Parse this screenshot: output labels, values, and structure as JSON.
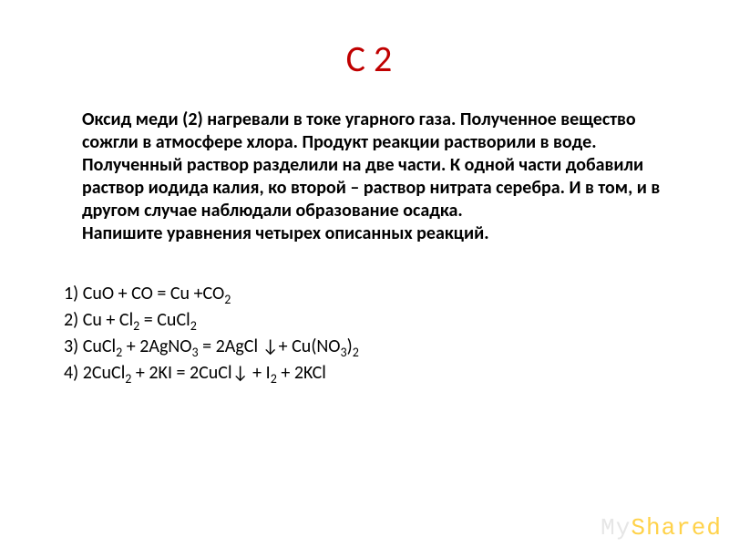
{
  "title": "С 2",
  "paragraph": "Оксид меди (2) нагревали в токе угарного газа. Полученное вещество сожгли в атмосфере хлора. Продукт реакции растворили в воде. Полученный раствор разделили на две части. К одной части добавили раствор иодида калия, ко второй – раствор нитрата серебра. И в том, и в другом случае наблюдали образование осадка.",
  "paragraph_tail": "Напишите уравнения четырех описанных реакций.",
  "equations": {
    "e1_prefix": "1) CuO + CO = Cu +CO",
    "e1_sub": "2",
    "e2_a": "2) Cu + Cl",
    "e2_s1": "2",
    "e2_b": " = CuCl",
    "e2_s2": "2",
    "e3_a": "3) CuCl",
    "e3_s1": "2",
    "e3_b": " + 2AgNO",
    "e3_s2": "3",
    "e3_c": " = 2AgCl ↓+ Cu(NO",
    "e3_s3": "3",
    "e3_d": ")",
    "e3_s4": "2",
    "e4_a": "4) 2CuCl",
    "e4_s1": "2",
    "e4_b": " + 2KI = 2CuCl↓ + I",
    "e4_s2": "2",
    "e4_c": " + 2KCl"
  },
  "watermark": {
    "left": "My",
    "right": "Shared"
  },
  "colors": {
    "title_color": "#c00000",
    "text_color": "#000000",
    "background": "#ffffff",
    "watermark_gray": "#e6e6e6",
    "watermark_accent": "#ffd24a"
  },
  "typography": {
    "title_fontsize": 40,
    "body_fontsize": 20,
    "body_weight": 700,
    "eq_fontsize": 20,
    "font_family": "Calibri"
  }
}
